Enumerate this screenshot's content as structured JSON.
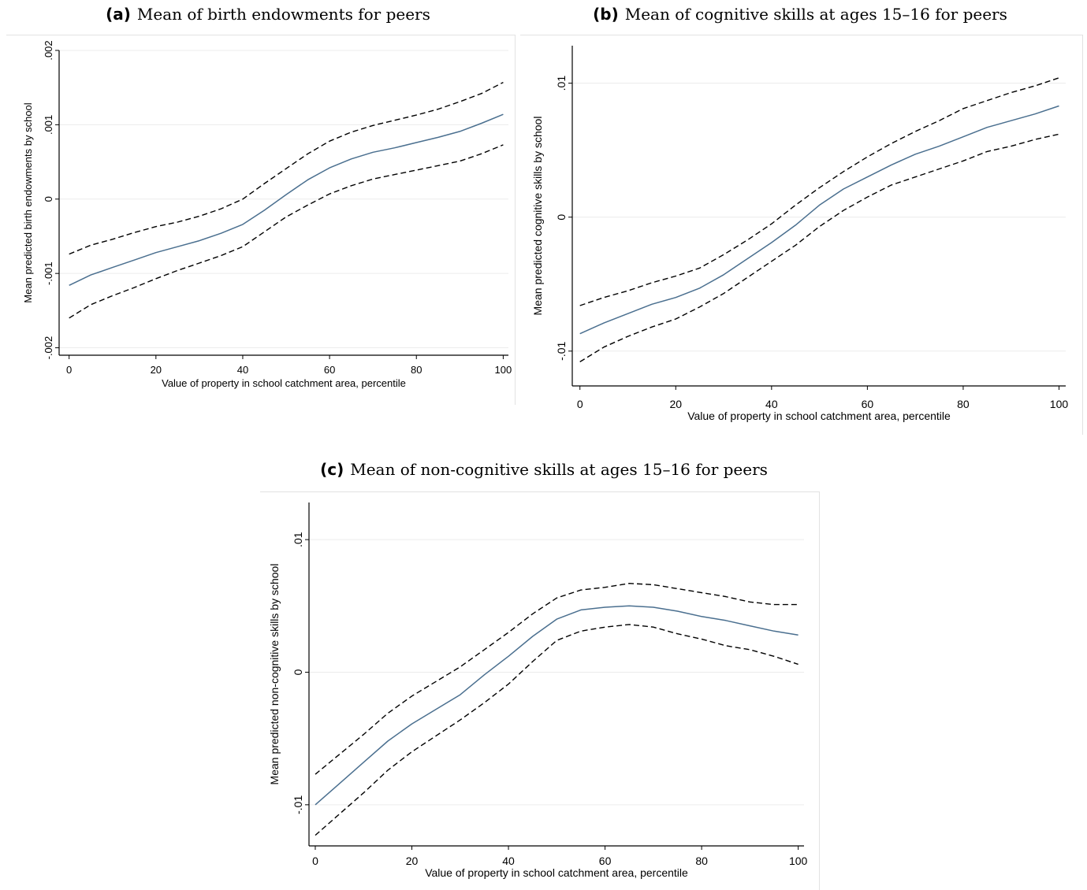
{
  "captions": [
    {
      "tag": "(a)",
      "text": "Mean of birth endowments for peers"
    },
    {
      "tag": "(b)",
      "text": "Mean of cognitive skills at ages 15–16 for peers"
    },
    {
      "tag": "(c)",
      "text": "Mean of non-cognitive skills at ages 15–16 for peers"
    }
  ],
  "chart_data": [
    {
      "type": "line",
      "title": "Mean of birth endowments for peers",
      "xlabel": "Value of property in school catchment area, percentile",
      "ylabel": "Mean predicted birth endowments by school",
      "xlim": [
        0,
        100
      ],
      "ylim": [
        -0.0021,
        0.002
      ],
      "x_ticks": [
        0,
        20,
        40,
        60,
        80,
        100
      ],
      "x_tick_labels": [
        "0",
        "20",
        "40",
        "60",
        "80",
        "100"
      ],
      "y_ticks": [
        -0.002,
        -0.001,
        0,
        0.001,
        0.002
      ],
      "y_tick_labels": [
        "-.002",
        "-.001",
        "0",
        ".001",
        ".002"
      ],
      "grid": true,
      "x": [
        0,
        5,
        10,
        15,
        20,
        25,
        30,
        35,
        40,
        45,
        50,
        55,
        60,
        65,
        70,
        75,
        80,
        85,
        90,
        95,
        100
      ],
      "series": [
        {
          "role": "estimate",
          "color": "#4a6f8f",
          "style": "solid",
          "values": [
            -0.00116,
            -0.00102,
            -0.00092,
            -0.00082,
            -0.00072,
            -0.00064,
            -0.00056,
            -0.00046,
            -0.00034,
            -0.00015,
            6e-05,
            0.00026,
            0.00042,
            0.00054,
            0.00063,
            0.00069,
            0.00076,
            0.00083,
            0.00091,
            0.00102,
            0.00114
          ]
        },
        {
          "role": "upper",
          "color": "#000000",
          "style": "dashed",
          "values": [
            -0.00074,
            -0.00062,
            -0.00054,
            -0.00045,
            -0.00037,
            -0.00031,
            -0.00023,
            -0.00013,
            0.0,
            0.00021,
            0.00041,
            0.00061,
            0.00078,
            0.0009,
            0.00099,
            0.00106,
            0.00113,
            0.00121,
            0.00131,
            0.00142,
            0.00157
          ]
        },
        {
          "role": "lower",
          "color": "#000000",
          "style": "dashed",
          "values": [
            -0.0016,
            -0.00142,
            -0.0013,
            -0.00119,
            -0.00107,
            -0.00096,
            -0.00086,
            -0.00076,
            -0.00064,
            -0.00044,
            -0.00024,
            -8e-05,
            7e-05,
            0.00018,
            0.00027,
            0.00033,
            0.00039,
            0.00045,
            0.00051,
            0.00061,
            0.00073
          ]
        }
      ]
    },
    {
      "type": "line",
      "title": "Mean of cognitive skills at ages 15–16 for peers",
      "xlabel": "Value of property in school catchment area, percentile",
      "ylabel": "Mean predicted cognitive skills by school",
      "xlim": [
        0,
        100
      ],
      "ylim": [
        -0.0126,
        0.0128
      ],
      "x_ticks": [
        0,
        20,
        40,
        60,
        80,
        100
      ],
      "x_tick_labels": [
        "0",
        "20",
        "40",
        "60",
        "80",
        "100"
      ],
      "y_ticks": [
        -0.01,
        0,
        0.01
      ],
      "y_tick_labels": [
        "-.01",
        "0",
        ".01"
      ],
      "grid": true,
      "x": [
        0,
        5,
        10,
        15,
        20,
        25,
        30,
        35,
        40,
        45,
        50,
        55,
        60,
        65,
        70,
        75,
        80,
        85,
        90,
        95,
        100
      ],
      "series": [
        {
          "role": "estimate",
          "color": "#4a6f8f",
          "style": "solid",
          "values": [
            -0.0087,
            -0.0079,
            -0.0072,
            -0.0065,
            -0.006,
            -0.0053,
            -0.0043,
            -0.0031,
            -0.0019,
            -0.0006,
            0.0009,
            0.0021,
            0.003,
            0.0039,
            0.0047,
            0.0053,
            0.006,
            0.0067,
            0.0072,
            0.0077,
            0.0083
          ]
        },
        {
          "role": "upper",
          "color": "#000000",
          "style": "dashed",
          "values": [
            -0.0066,
            -0.006,
            -0.0055,
            -0.0049,
            -0.0044,
            -0.0038,
            -0.0028,
            -0.0017,
            -0.0005,
            0.0009,
            0.0022,
            0.0034,
            0.0045,
            0.0055,
            0.0064,
            0.0072,
            0.0081,
            0.0087,
            0.0093,
            0.0098,
            0.0104
          ]
        },
        {
          "role": "lower",
          "color": "#000000",
          "style": "dashed",
          "values": [
            -0.0108,
            -0.0097,
            -0.0089,
            -0.0082,
            -0.0076,
            -0.0067,
            -0.0057,
            -0.0045,
            -0.0033,
            -0.0021,
            -0.0007,
            0.0005,
            0.0015,
            0.0024,
            0.003,
            0.0036,
            0.0042,
            0.0049,
            0.0053,
            0.0058,
            0.0062
          ]
        }
      ]
    },
    {
      "type": "line",
      "title": "Mean of non-cognitive skills at ages 15–16 for peers",
      "xlabel": "Value of property in school catchment area, percentile",
      "ylabel": "Mean predicted non-cognitive skills by school",
      "xlim": [
        0,
        100
      ],
      "ylim": [
        -0.0131,
        0.0128
      ],
      "x_ticks": [
        0,
        20,
        40,
        60,
        80,
        100
      ],
      "x_tick_labels": [
        "0",
        "20",
        "40",
        "60",
        "80",
        "100"
      ],
      "y_ticks": [
        -0.01,
        0,
        0.01
      ],
      "y_tick_labels": [
        "-.01",
        "0",
        ".01"
      ],
      "grid": true,
      "x": [
        0,
        5,
        10,
        15,
        20,
        25,
        30,
        35,
        40,
        45,
        50,
        55,
        60,
        65,
        70,
        75,
        80,
        85,
        90,
        95,
        100
      ],
      "series": [
        {
          "role": "estimate",
          "color": "#4a6f8f",
          "style": "solid",
          "values": [
            -0.01,
            -0.0084,
            -0.0068,
            -0.0052,
            -0.0039,
            -0.0028,
            -0.0017,
            -0.0002,
            0.0012,
            0.0027,
            0.004,
            0.0047,
            0.0049,
            0.005,
            0.0049,
            0.0046,
            0.0042,
            0.0039,
            0.0035,
            0.0031,
            0.0028
          ]
        },
        {
          "role": "upper",
          "color": "#000000",
          "style": "dashed",
          "values": [
            -0.0077,
            -0.0062,
            -0.0047,
            -0.0031,
            -0.0018,
            -0.0007,
            0.0004,
            0.0017,
            0.003,
            0.0044,
            0.0056,
            0.0062,
            0.0064,
            0.0067,
            0.0066,
            0.0063,
            0.006,
            0.0057,
            0.0053,
            0.0051,
            0.0051
          ]
        },
        {
          "role": "lower",
          "color": "#000000",
          "style": "dashed",
          "values": [
            -0.0123,
            -0.0107,
            -0.0091,
            -0.0074,
            -0.006,
            -0.0048,
            -0.0036,
            -0.0023,
            -0.0009,
            0.0008,
            0.0024,
            0.0031,
            0.0034,
            0.0036,
            0.0034,
            0.0029,
            0.0025,
            0.002,
            0.0017,
            0.0012,
            0.0006
          ]
        }
      ]
    }
  ]
}
